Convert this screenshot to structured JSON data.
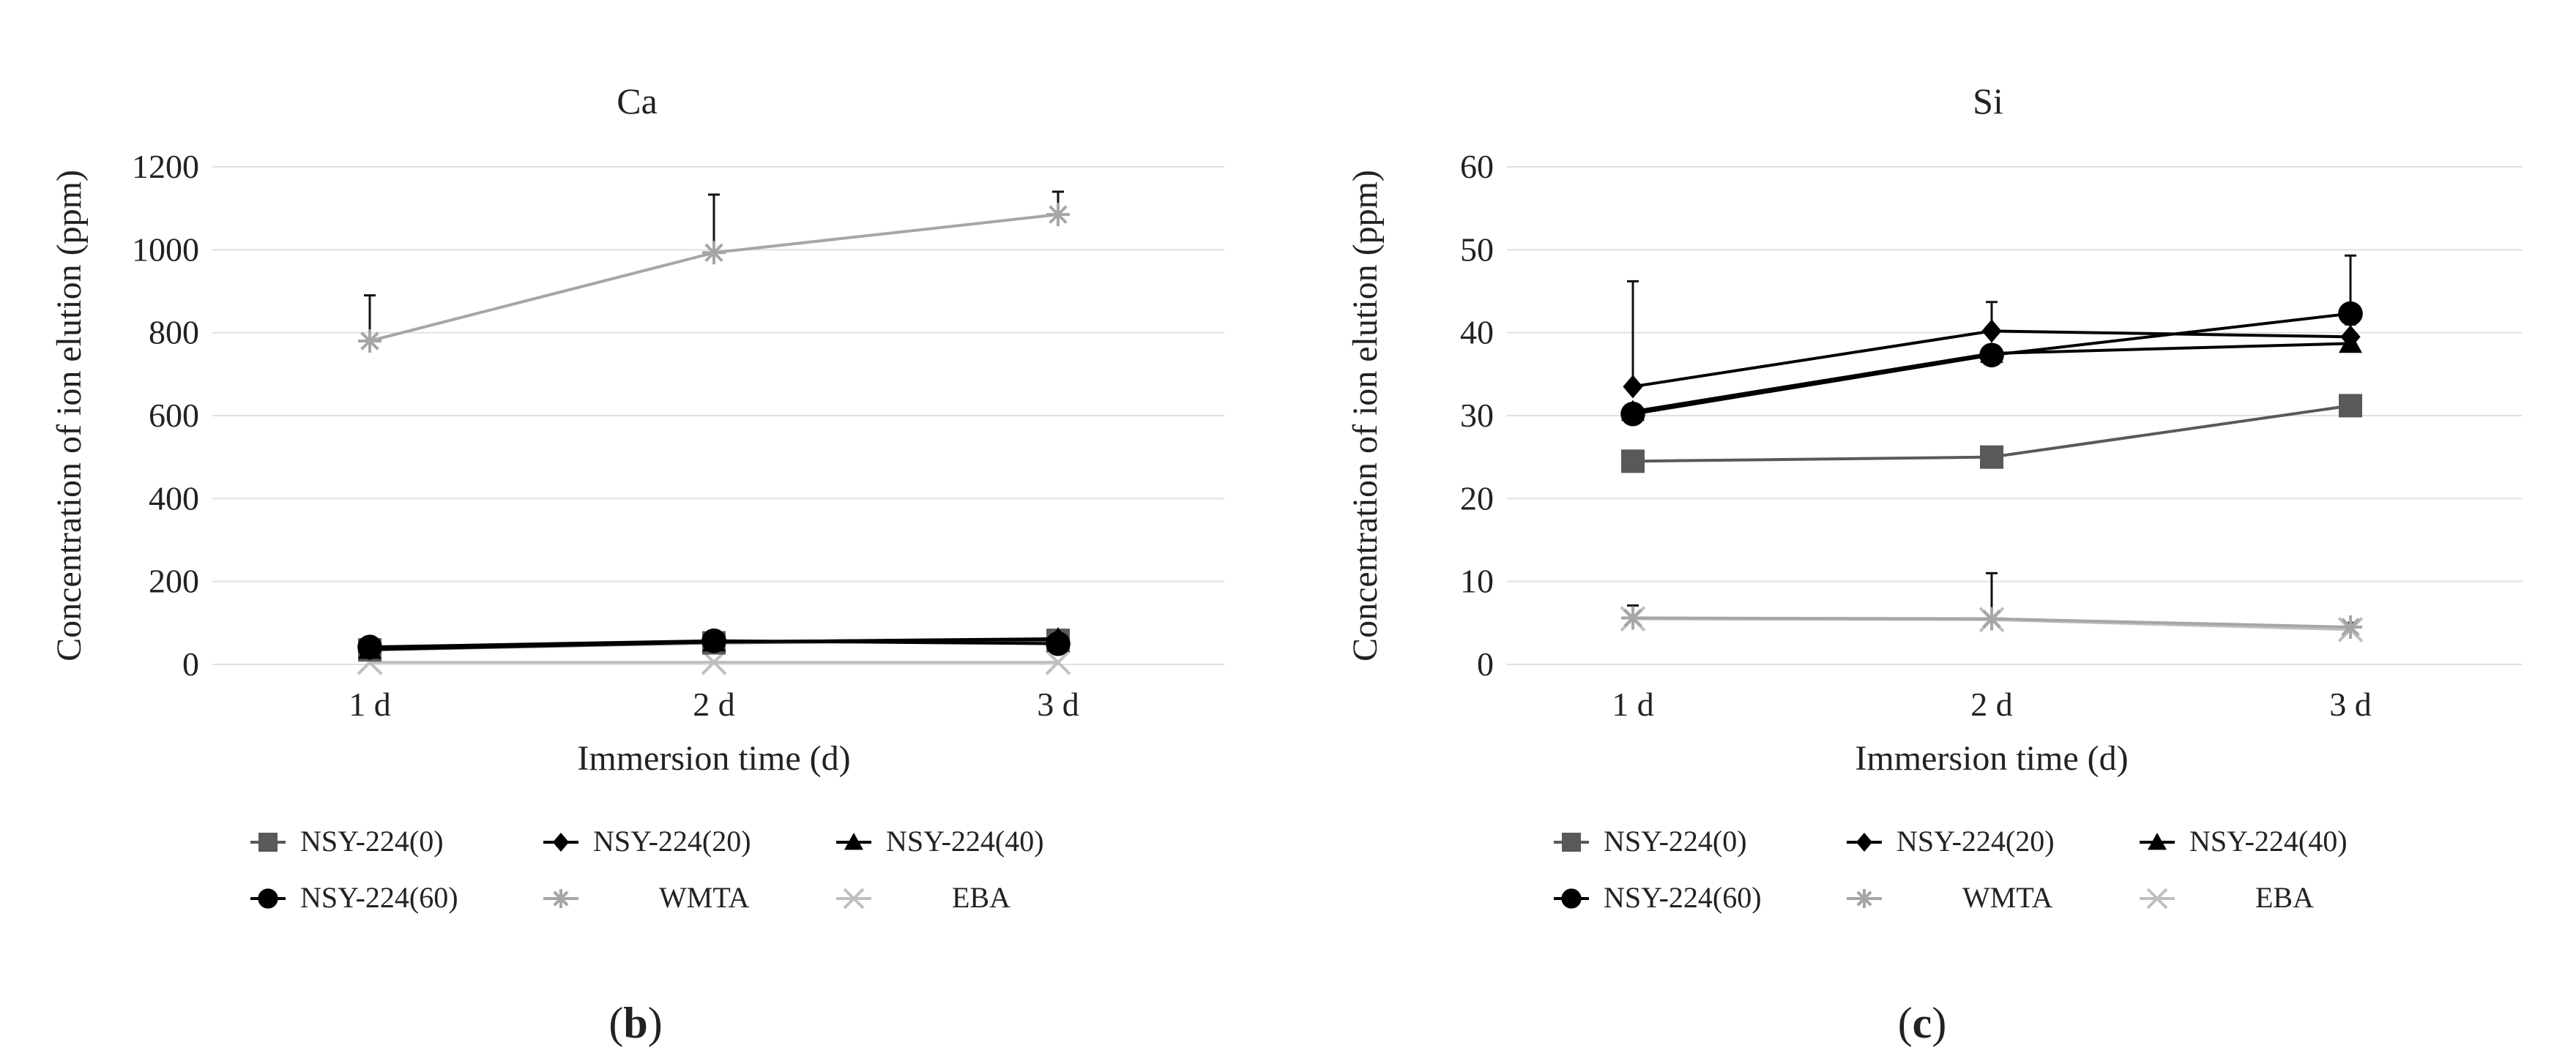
{
  "colors": {
    "black": "#000000",
    "dark_gray": "#595959",
    "light_gray": "#a6a6a6",
    "mid_gray": "#bfbfbf",
    "grid": "#e0e0e0"
  },
  "legend": [
    {
      "label": "NSY-224(0)",
      "marker": "square",
      "color": "#595959"
    },
    {
      "label": "NSY-224(20)",
      "marker": "diamond",
      "color": "#000000"
    },
    {
      "label": "NSY-224(40)",
      "marker": "triangle",
      "color": "#000000"
    },
    {
      "label": "NSY-224(60)",
      "marker": "circle",
      "color": "#000000"
    },
    {
      "label": "WMTA",
      "marker": "asterisk",
      "color": "#a6a6a6"
    },
    {
      "label": "EBA",
      "marker": "x",
      "color": "#bfbfbf"
    }
  ],
  "chart_data": [
    {
      "type": "line",
      "caption_letter": "b",
      "caption_open": "(",
      "caption_close": ")",
      "title": "Ca",
      "xlabel": "Immersion time (d)",
      "ylabel": "Concentration of ion elution (ppm)",
      "categories": [
        "1 d",
        "2 d",
        "3 d"
      ],
      "ylim": [
        0,
        1200
      ],
      "yticks": [
        0,
        200,
        400,
        600,
        800,
        1000,
        1200
      ],
      "grid": true,
      "legend_position": "bottom",
      "series": [
        {
          "name": "NSY-224(0)",
          "values": [
            35,
            52,
            58
          ],
          "errors": [
            5,
            6,
            8
          ]
        },
        {
          "name": "NSY-224(20)",
          "values": [
            38,
            55,
            60
          ],
          "errors": [
            5,
            6,
            8
          ]
        },
        {
          "name": "NSY-224(40)",
          "values": [
            36,
            54,
            62
          ],
          "errors": [
            5,
            6,
            8
          ]
        },
        {
          "name": "NSY-224(60)",
          "values": [
            42,
            57,
            50
          ],
          "errors": [
            6,
            6,
            8
          ]
        },
        {
          "name": "WMTA",
          "values": [
            780,
            993,
            1085
          ],
          "errors": [
            110,
            140,
            55
          ]
        },
        {
          "name": "EBA",
          "values": [
            5,
            5,
            5
          ],
          "errors": [
            0,
            0,
            0
          ]
        }
      ]
    },
    {
      "type": "line",
      "caption_letter": "c",
      "caption_open": "(",
      "caption_close": ")",
      "title": "Si",
      "xlabel": "Immersion time (d)",
      "ylabel": "Concentration of ion elution (ppm)",
      "categories": [
        "1 d",
        "2 d",
        "3 d"
      ],
      "ylim": [
        0,
        60
      ],
      "yticks": [
        0,
        10,
        20,
        30,
        40,
        50,
        60
      ],
      "grid": true,
      "legend_position": "bottom",
      "series": [
        {
          "name": "NSY-224(0)",
          "values": [
            24.5,
            25,
            31.2
          ],
          "errors": [
            0.5,
            0.8,
            0.8
          ]
        },
        {
          "name": "NSY-224(20)",
          "values": [
            33.5,
            40.2,
            39.5
          ],
          "errors": [
            12.7,
            3.5,
            1.5
          ]
        },
        {
          "name": "NSY-224(40)",
          "values": [
            30.5,
            37.5,
            38.7
          ],
          "errors": [
            0.5,
            0.8,
            0.8
          ]
        },
        {
          "name": "NSY-224(60)",
          "values": [
            30.2,
            37.3,
            42.3
          ],
          "errors": [
            0.5,
            0.8,
            7
          ]
        },
        {
          "name": "WMTA",
          "values": [
            5.6,
            5.5,
            4.5
          ],
          "errors": [
            1.5,
            5.5,
            0.5
          ]
        },
        {
          "name": "EBA",
          "values": [
            5.5,
            5.4,
            4.2
          ],
          "errors": [
            0,
            0,
            0
          ]
        }
      ]
    }
  ]
}
